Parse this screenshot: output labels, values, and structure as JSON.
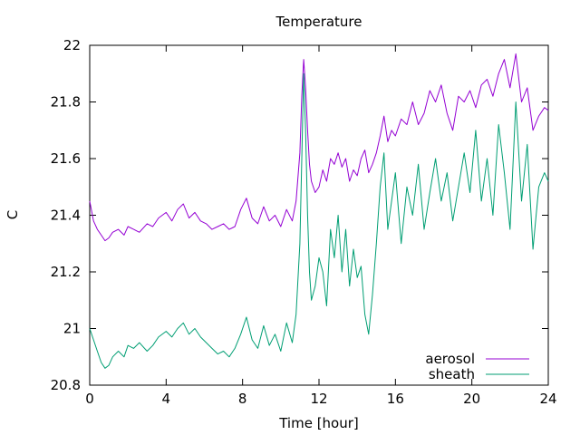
{
  "chart_data": {
    "type": "line",
    "title": "Temperature",
    "xlabel": "Time [hour]",
    "ylabel": "C",
    "xlim": [
      0,
      24
    ],
    "ylim": [
      20.8,
      22
    ],
    "xticks": [
      0,
      4,
      8,
      12,
      16,
      20,
      24
    ],
    "yticks": [
      20.8,
      21,
      21.2,
      21.4,
      21.6,
      21.8,
      22
    ],
    "grid": false,
    "legend_position": "bottom-right",
    "series": [
      {
        "name": "aerosol",
        "color": "#9400d3",
        "x": [
          0,
          0.2,
          0.4,
          0.6,
          0.8,
          1.0,
          1.2,
          1.5,
          1.8,
          2.0,
          2.3,
          2.6,
          3.0,
          3.3,
          3.6,
          4.0,
          4.3,
          4.6,
          4.9,
          5.2,
          5.5,
          5.8,
          6.1,
          6.4,
          6.7,
          7.0,
          7.3,
          7.6,
          7.9,
          8.2,
          8.5,
          8.8,
          9.1,
          9.4,
          9.7,
          10.0,
          10.3,
          10.6,
          10.8,
          11.0,
          11.1,
          11.2,
          11.3,
          11.4,
          11.5,
          11.6,
          11.8,
          12.0,
          12.2,
          12.4,
          12.6,
          12.8,
          13.0,
          13.2,
          13.4,
          13.6,
          13.8,
          14.0,
          14.2,
          14.4,
          14.6,
          14.8,
          15.0,
          15.2,
          15.4,
          15.6,
          15.8,
          16.0,
          16.3,
          16.6,
          16.9,
          17.2,
          17.5,
          17.8,
          18.1,
          18.4,
          18.7,
          19.0,
          19.3,
          19.6,
          19.9,
          20.2,
          20.5,
          20.8,
          21.1,
          21.4,
          21.7,
          22.0,
          22.3,
          22.6,
          22.9,
          23.2,
          23.5,
          23.8,
          24.0
        ],
        "values": [
          21.45,
          21.38,
          21.35,
          21.33,
          21.31,
          21.32,
          21.34,
          21.35,
          21.33,
          21.36,
          21.35,
          21.34,
          21.37,
          21.36,
          21.39,
          21.41,
          21.38,
          21.42,
          21.44,
          21.39,
          21.41,
          21.38,
          21.37,
          21.35,
          21.36,
          21.37,
          21.35,
          21.36,
          21.42,
          21.46,
          21.39,
          21.37,
          21.43,
          21.38,
          21.4,
          21.36,
          21.42,
          21.38,
          21.45,
          21.62,
          21.82,
          21.95,
          21.85,
          21.7,
          21.58,
          21.52,
          21.48,
          21.5,
          21.56,
          21.52,
          21.6,
          21.58,
          21.62,
          21.57,
          21.6,
          21.52,
          21.56,
          21.54,
          21.6,
          21.63,
          21.55,
          21.58,
          21.62,
          21.68,
          21.75,
          21.66,
          21.7,
          21.68,
          21.74,
          21.72,
          21.8,
          21.72,
          21.76,
          21.84,
          21.8,
          21.86,
          21.76,
          21.7,
          21.82,
          21.8,
          21.84,
          21.78,
          21.86,
          21.88,
          21.82,
          21.9,
          21.95,
          21.85,
          21.97,
          21.8,
          21.85,
          21.7,
          21.75,
          21.78,
          21.77
        ]
      },
      {
        "name": "sheath",
        "color": "#009e73",
        "x": [
          0,
          0.2,
          0.4,
          0.6,
          0.8,
          1.0,
          1.2,
          1.5,
          1.8,
          2.0,
          2.3,
          2.6,
          3.0,
          3.3,
          3.6,
          4.0,
          4.3,
          4.6,
          4.9,
          5.2,
          5.5,
          5.8,
          6.1,
          6.4,
          6.7,
          7.0,
          7.3,
          7.6,
          7.9,
          8.2,
          8.5,
          8.8,
          9.1,
          9.4,
          9.7,
          10.0,
          10.3,
          10.6,
          10.8,
          11.0,
          11.1,
          11.2,
          11.3,
          11.4,
          11.5,
          11.6,
          11.8,
          12.0,
          12.2,
          12.4,
          12.6,
          12.8,
          13.0,
          13.2,
          13.4,
          13.6,
          13.8,
          14.0,
          14.2,
          14.4,
          14.6,
          14.8,
          15.0,
          15.2,
          15.4,
          15.6,
          15.8,
          16.0,
          16.3,
          16.6,
          16.9,
          17.2,
          17.5,
          17.8,
          18.1,
          18.4,
          18.7,
          19.0,
          19.3,
          19.6,
          19.9,
          20.2,
          20.5,
          20.8,
          21.1,
          21.4,
          21.7,
          22.0,
          22.3,
          22.6,
          22.9,
          23.2,
          23.5,
          23.8,
          24.0
        ],
        "values": [
          21.0,
          20.96,
          20.92,
          20.88,
          20.86,
          20.87,
          20.9,
          20.92,
          20.9,
          20.94,
          20.93,
          20.95,
          20.92,
          20.94,
          20.97,
          20.99,
          20.97,
          21.0,
          21.02,
          20.98,
          21.0,
          20.97,
          20.95,
          20.93,
          20.91,
          20.92,
          20.9,
          20.93,
          20.98,
          21.04,
          20.96,
          20.93,
          21.01,
          20.94,
          20.98,
          20.92,
          21.02,
          20.95,
          21.05,
          21.3,
          21.6,
          21.9,
          21.7,
          21.4,
          21.2,
          21.1,
          21.15,
          21.25,
          21.2,
          21.08,
          21.35,
          21.25,
          21.4,
          21.2,
          21.35,
          21.15,
          21.28,
          21.18,
          21.22,
          21.05,
          20.98,
          21.12,
          21.3,
          21.5,
          21.62,
          21.35,
          21.45,
          21.55,
          21.3,
          21.5,
          21.4,
          21.58,
          21.35,
          21.48,
          21.6,
          21.45,
          21.55,
          21.38,
          21.5,
          21.62,
          21.48,
          21.7,
          21.45,
          21.6,
          21.4,
          21.72,
          21.55,
          21.35,
          21.8,
          21.45,
          21.65,
          21.28,
          21.5,
          21.55,
          21.52
        ]
      }
    ]
  }
}
